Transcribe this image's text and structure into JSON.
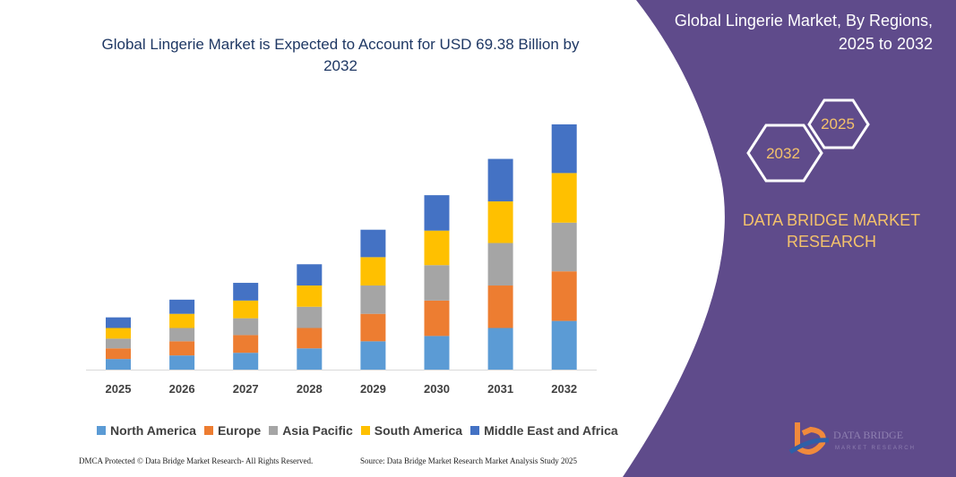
{
  "chart_data": {
    "type": "bar",
    "stacked": true,
    "title": "Global Lingerie Market is Expected to Account for USD 69.38 Billion by 2032",
    "categories": [
      "2025",
      "2026",
      "2027",
      "2028",
      "2029",
      "2030",
      "2031",
      "2032"
    ],
    "series": [
      {
        "name": "North America",
        "color": "#5b9bd5",
        "values": [
          12,
          16,
          19,
          24,
          32,
          38,
          47,
          55
        ]
      },
      {
        "name": "Europe",
        "color": "#ed7d31",
        "values": [
          12,
          16,
          20,
          23,
          31,
          40,
          48,
          56
        ]
      },
      {
        "name": "Asia Pacific",
        "color": "#a5a5a5",
        "values": [
          11,
          15,
          19,
          24,
          32,
          40,
          48,
          55
        ]
      },
      {
        "name": "South America",
        "color": "#ffc000",
        "values": [
          12,
          16,
          20,
          24,
          32,
          39,
          47,
          56
        ]
      },
      {
        "name": "Middle East and Africa",
        "color": "#4472c4",
        "values": [
          12,
          16,
          20,
          24,
          31,
          40,
          48,
          55
        ]
      }
    ],
    "ylim": [
      0,
      280
    ],
    "grid": false,
    "legend_position": "bottom"
  },
  "footer": {
    "left": "DMCA Protected © Data Bridge Market Research- All Rights Reserved.",
    "right": "Source: Data Bridge Market Research  Market Analysis Study 2025"
  },
  "panel": {
    "title": "Global Lingerie Market, By Regions, 2025 to 2032",
    "hex_start": "2025",
    "hex_end": "2032",
    "brand": "DATA BRIDGE MARKET RESEARCH",
    "logo_text": "DATA BRIDGE",
    "logo_subtext": "MARKET RESEARCH",
    "color": "#5f4b8b",
    "accent": "#f4c26b"
  }
}
